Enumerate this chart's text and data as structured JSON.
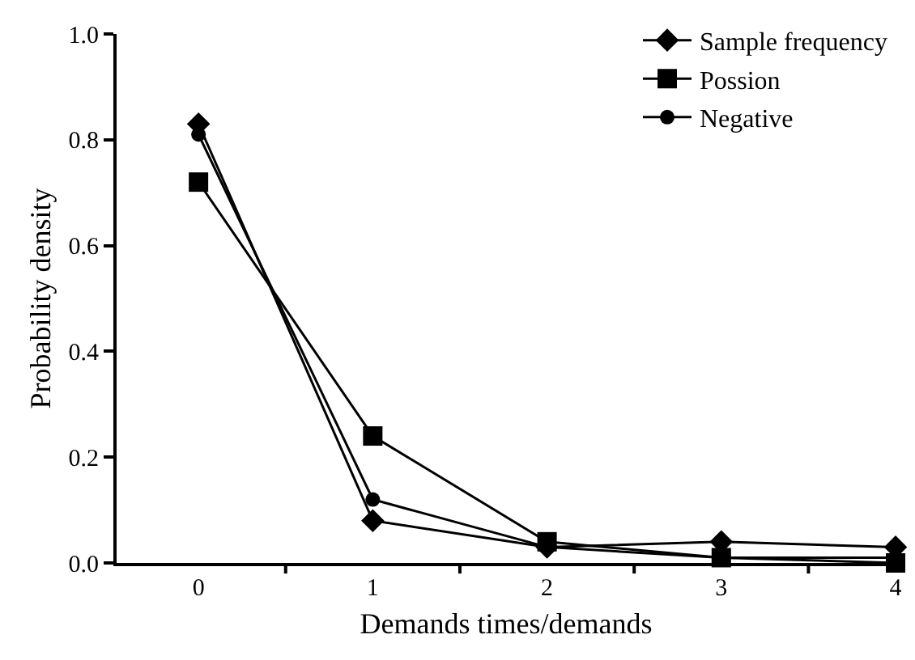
{
  "chart_data": {
    "type": "line",
    "xlabel": "Demands times/demands",
    "ylabel": "Probability density",
    "categories": [
      "0",
      "1",
      "2",
      "3",
      "4"
    ],
    "series": [
      {
        "name": "Sample frequency",
        "color": "#000000",
        "marker": "diamond",
        "values": [
          0.83,
          0.08,
          0.03,
          0.04,
          0.03
        ]
      },
      {
        "name": "Possion",
        "color": "#000000",
        "marker": "square",
        "values": [
          0.72,
          0.24,
          0.04,
          0.01,
          0.0
        ]
      },
      {
        "name": "Negative",
        "color": "#000000",
        "marker": "circle",
        "values": [
          0.81,
          0.12,
          0.03,
          0.01,
          0.01
        ]
      }
    ],
    "ylim": [
      0,
      1.0
    ],
    "yticks": [
      {
        "value": 0,
        "label": "0.0"
      },
      {
        "value": 0.2,
        "label": "0.2"
      },
      {
        "value": 0.4,
        "label": "0.4"
      },
      {
        "value": 0.6,
        "label": "0.6"
      },
      {
        "value": 0.8,
        "label": "0.8"
      },
      {
        "value": 1.0,
        "label": "1.0"
      }
    ],
    "legend": "top right",
    "line_style": "solid"
  }
}
